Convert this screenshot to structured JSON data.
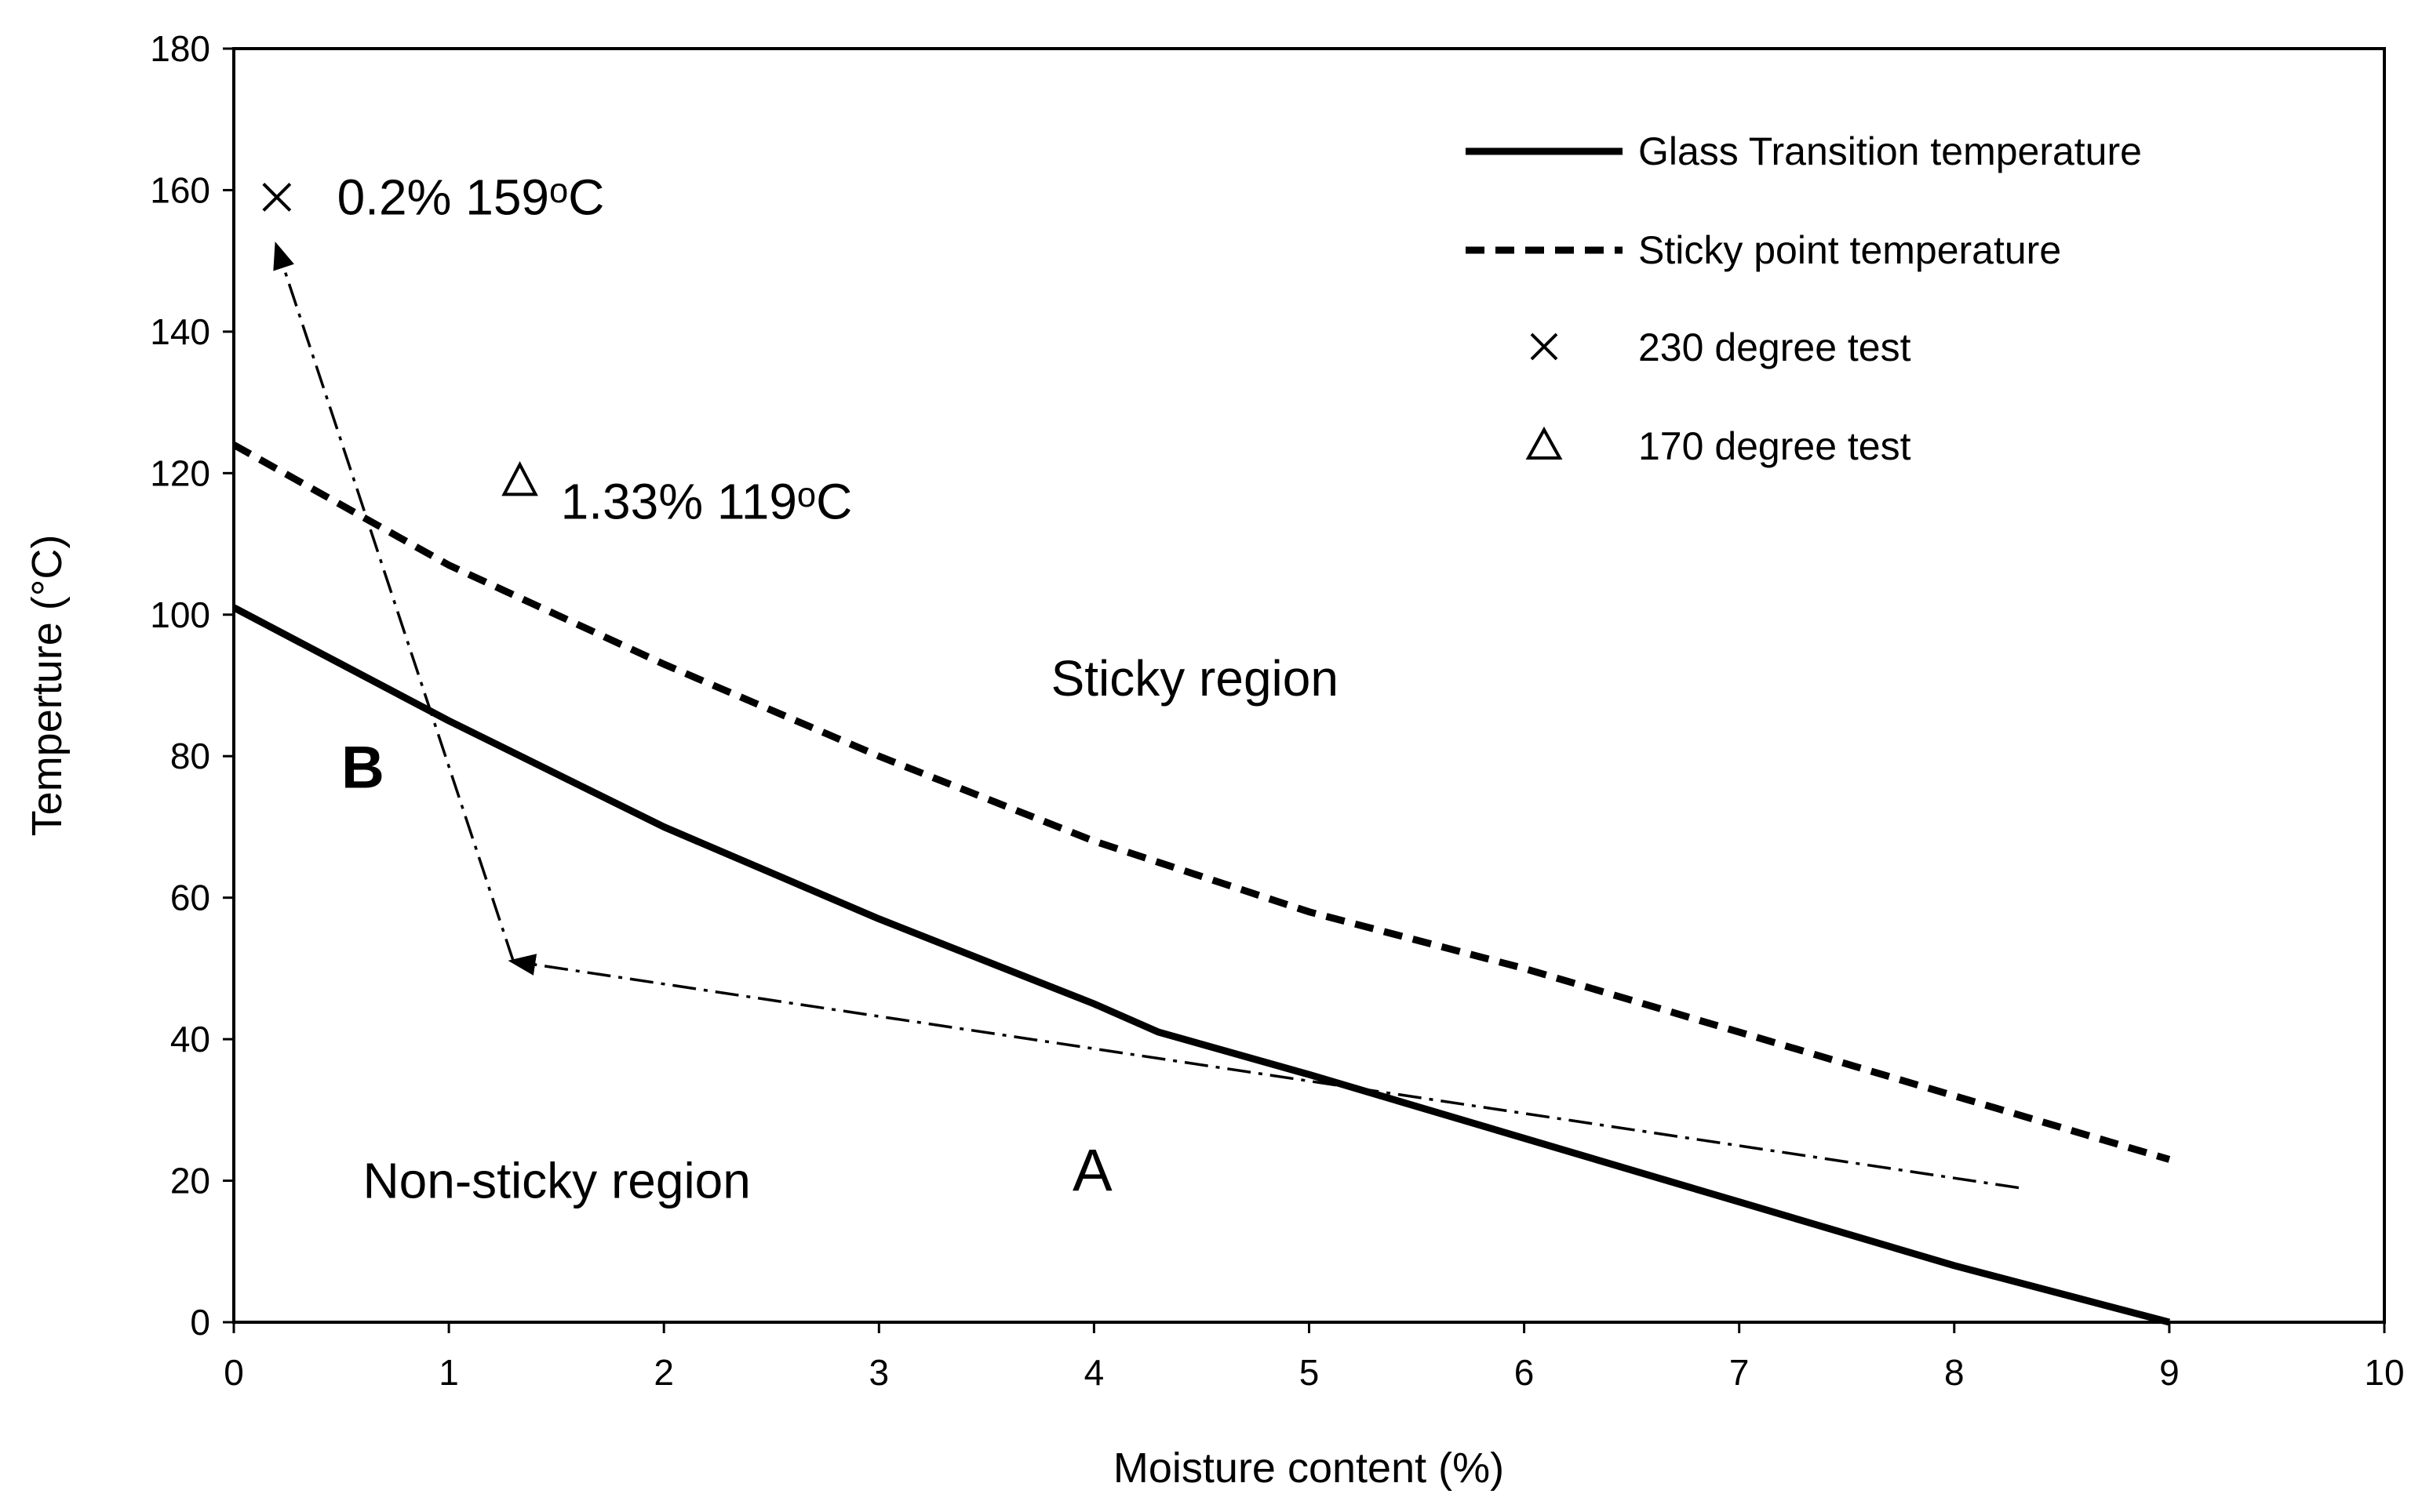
{
  "chart_data": {
    "type": "line",
    "title": "",
    "xlabel": "Moisture content (%)",
    "ylabel": "Temperture (°C)",
    "xlim": [
      0,
      10
    ],
    "ylim": [
      0,
      180
    ],
    "xticks": [
      0,
      1,
      2,
      3,
      4,
      5,
      6,
      7,
      8,
      9,
      10
    ],
    "yticks": [
      0,
      20,
      40,
      60,
      80,
      100,
      120,
      140,
      160,
      180
    ],
    "grid": false,
    "legend_position": "top-right",
    "series": [
      {
        "name": "Glass Transition temperature",
        "style": "solid",
        "x": [
          0,
          1,
          2,
          3,
          4,
          4.3,
          5,
          6,
          7,
          8,
          9
        ],
        "y": [
          101,
          85,
          70,
          57,
          45,
          41,
          35,
          26,
          17,
          8,
          0
        ]
      },
      {
        "name": "Sticky point temperature",
        "style": "dashed",
        "x": [
          0,
          1,
          2,
          3,
          4,
          4.3,
          5,
          6,
          7,
          8,
          9
        ],
        "y": [
          124,
          107,
          93,
          80,
          68,
          65,
          58,
          50,
          41,
          32,
          23
        ]
      },
      {
        "name": "230 degree test",
        "style": "marker-x",
        "x": [
          0.2
        ],
        "y": [
          159
        ]
      },
      {
        "name": "170 degree test",
        "style": "marker-triangle",
        "x": [
          1.33
        ],
        "y": [
          119
        ]
      }
    ],
    "process_path": {
      "style": "dash-dot",
      "segment_1": {
        "from": [
          8.3,
          19
        ],
        "to": [
          1.3,
          51
        ]
      },
      "segment_2": {
        "from": [
          1.3,
          51
        ],
        "to": [
          0.2,
          152
        ]
      }
    },
    "annotations": {
      "point_x": "0.2% 159ᵒC",
      "point_triangle": "1.33% 119ᵒC",
      "sticky_region": "Sticky region",
      "non_sticky_region": "Non-sticky region",
      "label_a": "A",
      "label_b": "B"
    },
    "annotation_positions": {
      "point_x": [
        0.48,
        159
      ],
      "point_triangle": [
        1.52,
        116
      ],
      "sticky_region": [
        3.8,
        91
      ],
      "non_sticky_region": [
        0.6,
        20
      ],
      "label_a": [
        3.9,
        21
      ],
      "label_b": [
        0.5,
        78
      ]
    }
  }
}
